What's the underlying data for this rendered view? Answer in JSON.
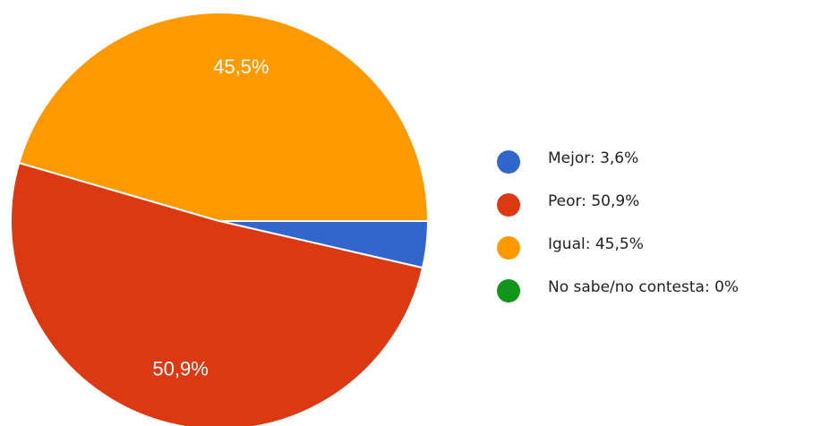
{
  "chart_data": {
    "type": "pie",
    "categories": [
      "Mejor: 3,6%",
      "Peor: 50,9%",
      "Igual: 45,5%",
      "No sabe/no contesta: 0%"
    ],
    "values": [
      3.6,
      50.9,
      45.5,
      0
    ],
    "value_labels": [
      null,
      "50,9%",
      "45,5%",
      null
    ],
    "colors": [
      "#3366cc",
      "#dc3912",
      "#ff9900",
      "#109618"
    ],
    "legend": "right"
  }
}
